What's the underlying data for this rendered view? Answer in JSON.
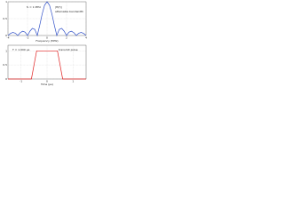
{
  "chart_data": [
    {
      "type": "line",
      "annotations": [
        "f₀ = 1 MHz",
        "|H(f)|",
        "attainable bandwidth"
      ],
      "x_label": "Frequency (MHz)",
      "x": [
        -4,
        -3.75,
        -3.5,
        -3.25,
        -3,
        -2.75,
        -2.5,
        -2.25,
        -2,
        -1.75,
        -1.5,
        -1.25,
        -1,
        -0.75,
        -0.5,
        -0.25,
        0,
        0.25,
        0.5,
        0.75,
        1,
        1.25,
        1.5,
        1.75,
        2,
        2.25,
        2.5,
        2.75,
        3,
        3.25,
        3.5,
        3.75,
        4
      ],
      "series": [
        {
          "color": "#3050c8",
          "values": [
            0,
            0.06,
            0.091,
            0.069,
            0,
            0.082,
            0.127,
            0.1,
            0,
            0.129,
            0.212,
            0.18,
            0,
            0.3,
            0.637,
            0.9,
            1,
            0.9,
            0.637,
            0.3,
            0,
            0.18,
            0.212,
            0.129,
            0,
            0.1,
            0.127,
            0.082,
            0,
            0.069,
            0.091,
            0.06,
            0
          ]
        }
      ],
      "xlim": [
        -4,
        4
      ],
      "xticks": [
        -4,
        -2,
        0,
        2,
        4
      ],
      "ylim": [
        0,
        1
      ],
      "yticks": [
        0,
        0.5,
        1
      ],
      "grid": true
    },
    {
      "type": "line",
      "annotations": [
        "T = 1.000 μs",
        "transmit pulse"
      ],
      "x_label": "Time (μs)",
      "x": [
        -1.5,
        -0.6,
        -0.4,
        0.4,
        0.6,
        1.5
      ],
      "series": [
        {
          "color": "#e02020",
          "values": [
            0,
            0,
            1,
            1,
            0,
            0
          ]
        }
      ],
      "xlim": [
        -1.5,
        1.5
      ],
      "xticks": [
        -1,
        0,
        1
      ],
      "ylim": [
        0,
        1.2
      ],
      "yticks": [
        0,
        0.5,
        1
      ],
      "grid": true
    }
  ]
}
